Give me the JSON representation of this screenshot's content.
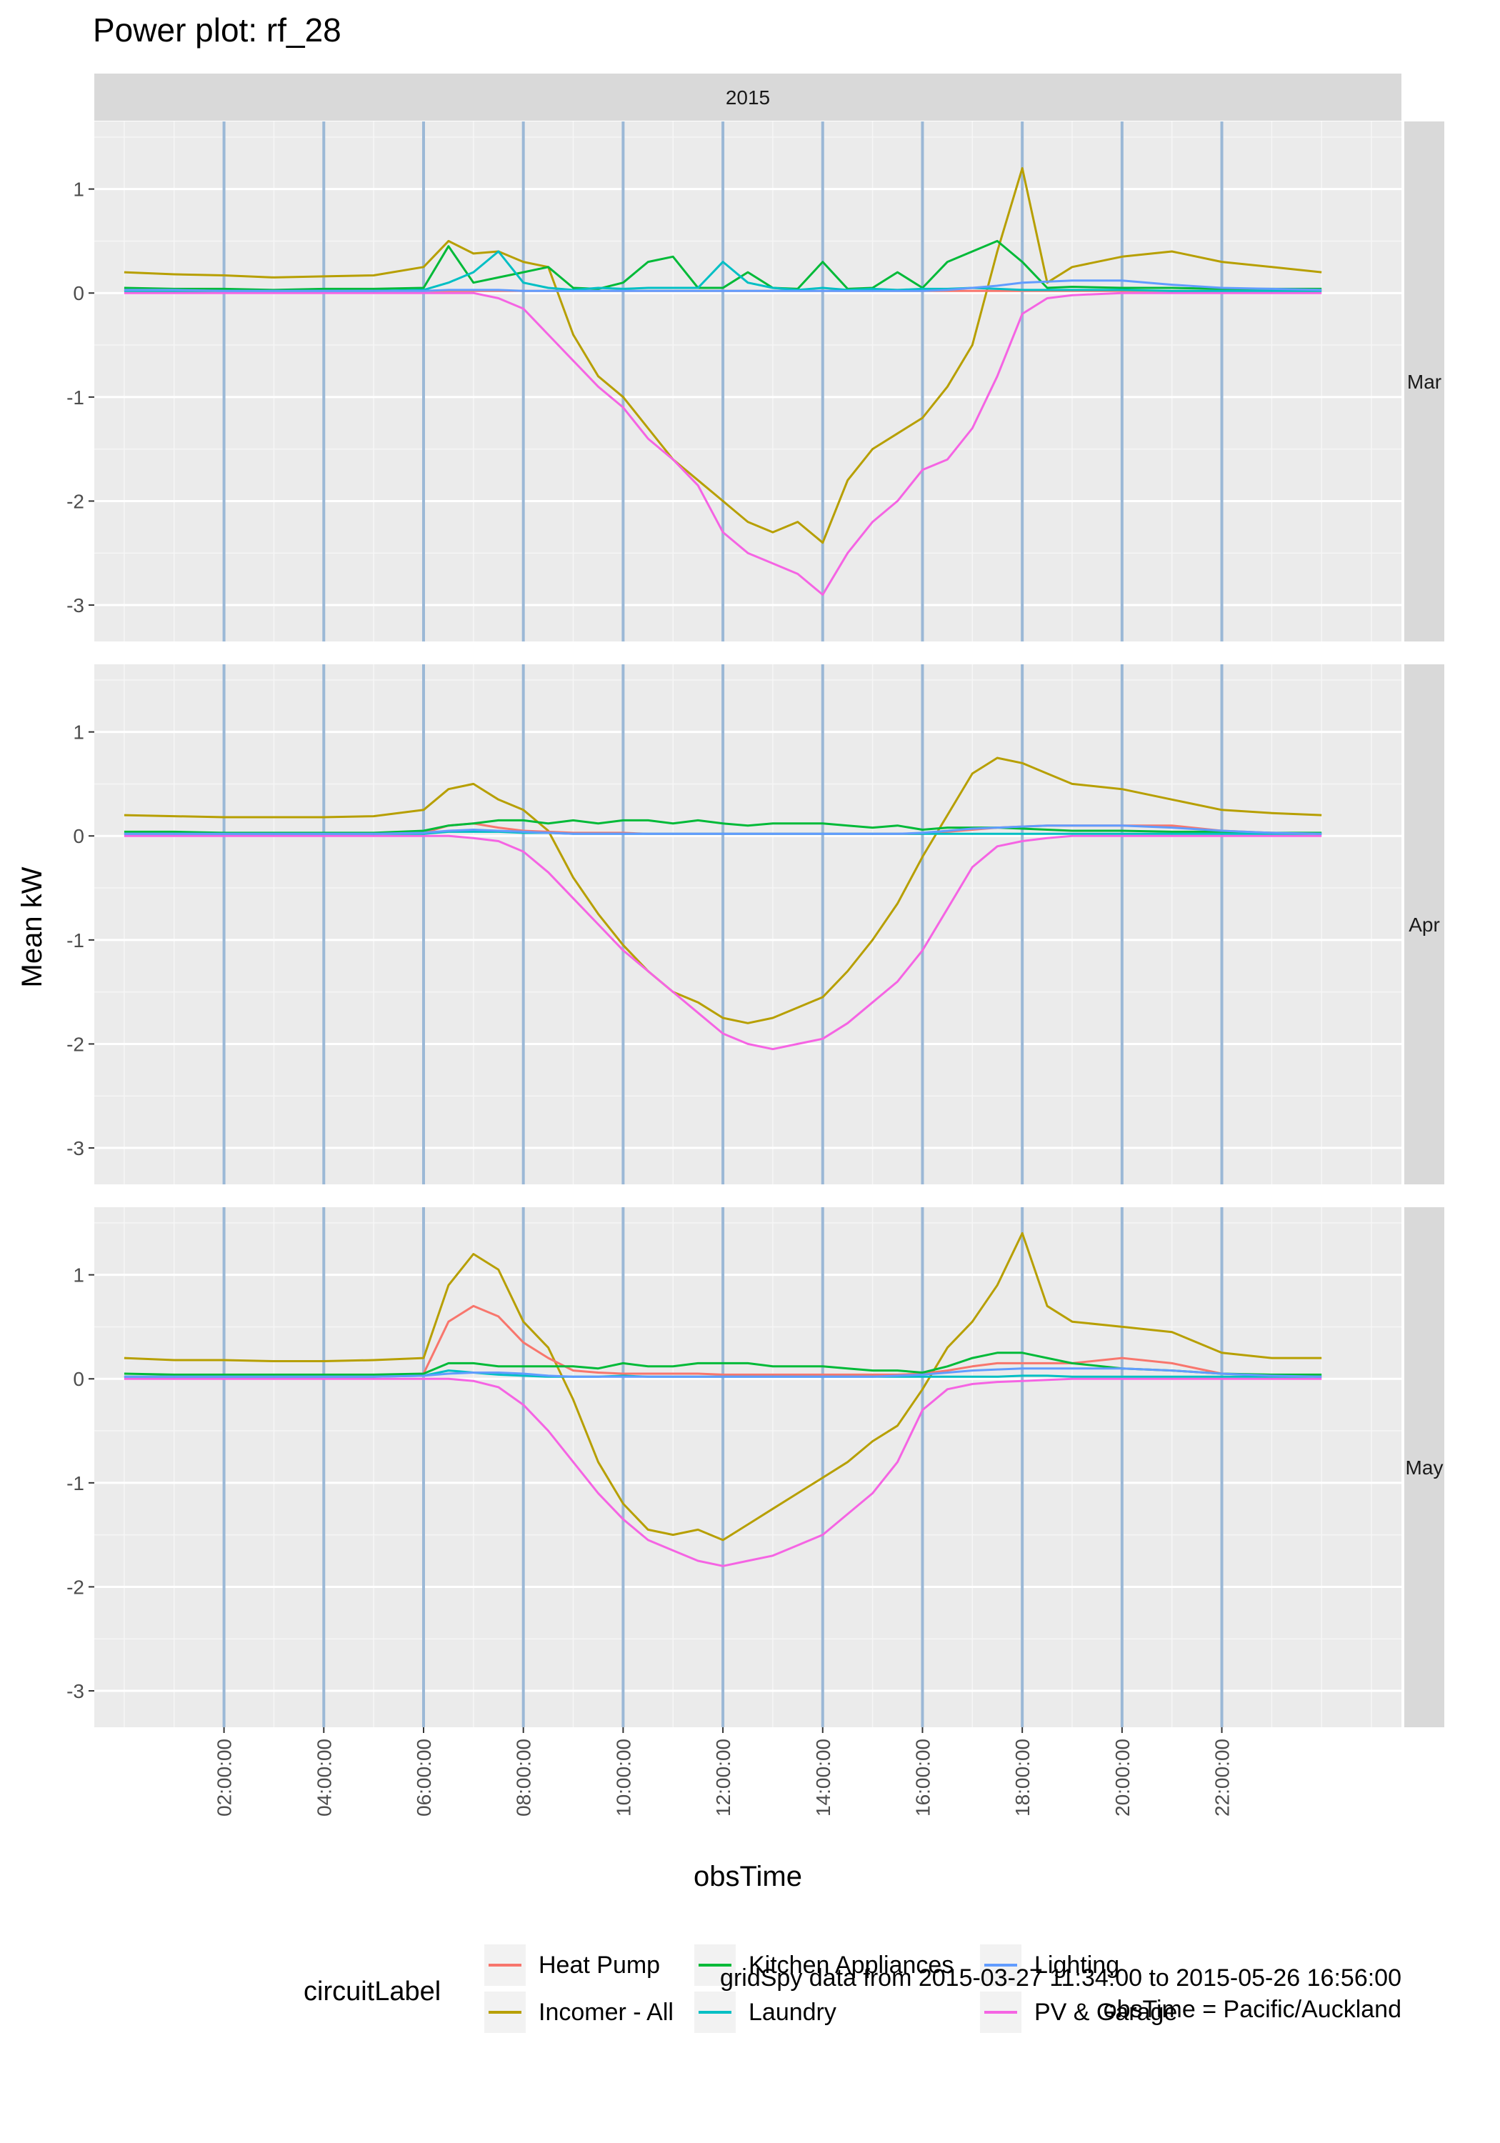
{
  "chart_data": {
    "type": "line",
    "title": "Power plot: rf_28",
    "xlabel": "obsTime",
    "ylabel": "Mean kW",
    "strip_top": "2015",
    "facets": [
      "Mar",
      "Apr",
      "May"
    ],
    "ylim": [
      -3.35,
      1.65
    ],
    "y_ticks": [
      1,
      0,
      -1,
      -2,
      -3
    ],
    "y_tick_labels": [
      "1",
      "0",
      "-1",
      "-2",
      "-3"
    ],
    "xlim": [
      -0.6,
      25.6
    ],
    "x_ticks": [
      2,
      4,
      6,
      8,
      10,
      12,
      14,
      16,
      18,
      20,
      22
    ],
    "x_tick_labels": [
      "02:00:00",
      "04:00:00",
      "06:00:00",
      "08:00:00",
      "10:00:00",
      "12:00:00",
      "14:00:00",
      "16:00:00",
      "18:00:00",
      "20:00:00",
      "22:00:00"
    ],
    "vlines": [
      2,
      4,
      6,
      8,
      10,
      12,
      14,
      16,
      18,
      20,
      22
    ],
    "grid": true,
    "legend_title": "circuitLabel",
    "legend_position": "bottom",
    "legend_order": [
      "Heat Pump",
      "Incomer - All",
      "Kitchen Appliances",
      "Laundry",
      "Lighting",
      "PV & Garage"
    ],
    "colors": {
      "Heat Pump": "#F8766D",
      "Incomer - All": "#B79F00",
      "Kitchen Appliances": "#00BA38",
      "Laundry": "#00BFC4",
      "Lighting": "#619CFF",
      "PV & Garage": "#F564E3",
      "vline": "#9BB8D6",
      "panel_bg": "#EBEBEB",
      "strip_bg": "#D9D9D9"
    },
    "caption_lines": [
      "gridSpy data from 2015-03-27 11:34:00 to 2015-05-26 16:56:00",
      "obsTime = Pacific/Auckland"
    ],
    "x": [
      0,
      1,
      2,
      3,
      4,
      5,
      6,
      6.5,
      7,
      7.5,
      8,
      8.5,
      9,
      9.5,
      10,
      10.5,
      11,
      11.5,
      12,
      12.5,
      13,
      13.5,
      14,
      14.5,
      15,
      15.5,
      16,
      16.5,
      17,
      17.5,
      18,
      18.5,
      19,
      20,
      21,
      22,
      23,
      24
    ],
    "panels": [
      {
        "facet": "Mar",
        "series": [
          {
            "name": "Heat Pump",
            "values": [
              0.02,
              0.02,
              0.02,
              0.02,
              0.02,
              0.02,
              0.02,
              0.02,
              0.02,
              0.02,
              0.02,
              0.02,
              0.02,
              0.02,
              0.02,
              0.02,
              0.02,
              0.02,
              0.02,
              0.02,
              0.02,
              0.02,
              0.02,
              0.02,
              0.02,
              0.02,
              0.02,
              0.02,
              0.02,
              0.02,
              0.02,
              0.02,
              0.02,
              0.02,
              0.02,
              0.02,
              0.02,
              0.02
            ]
          },
          {
            "name": "Incomer - All",
            "values": [
              0.2,
              0.18,
              0.17,
              0.15,
              0.16,
              0.17,
              0.25,
              0.5,
              0.38,
              0.4,
              0.3,
              0.25,
              -0.4,
              -0.8,
              -1.0,
              -1.3,
              -1.6,
              -1.8,
              -2.0,
              -2.2,
              -2.3,
              -2.2,
              -2.4,
              -1.8,
              -1.5,
              -1.35,
              -1.2,
              -0.9,
              -0.5,
              0.4,
              1.2,
              0.1,
              0.25,
              0.35,
              0.4,
              0.3,
              0.25,
              0.2
            ]
          },
          {
            "name": "Kitchen Appliances",
            "values": [
              0.05,
              0.04,
              0.04,
              0.03,
              0.04,
              0.04,
              0.05,
              0.45,
              0.1,
              0.15,
              0.2,
              0.25,
              0.05,
              0.04,
              0.1,
              0.3,
              0.35,
              0.05,
              0.05,
              0.2,
              0.05,
              0.04,
              0.3,
              0.04,
              0.05,
              0.2,
              0.05,
              0.3,
              0.4,
              0.5,
              0.3,
              0.05,
              0.06,
              0.05,
              0.05,
              0.04,
              0.04,
              0.04
            ]
          },
          {
            "name": "Laundry",
            "values": [
              0.02,
              0.02,
              0.02,
              0.02,
              0.02,
              0.02,
              0.03,
              0.1,
              0.2,
              0.4,
              0.1,
              0.05,
              0.03,
              0.05,
              0.04,
              0.05,
              0.05,
              0.05,
              0.3,
              0.1,
              0.05,
              0.03,
              0.05,
              0.03,
              0.04,
              0.03,
              0.04,
              0.04,
              0.05,
              0.04,
              0.03,
              0.03,
              0.03,
              0.03,
              0.02,
              0.02,
              0.02,
              0.02
            ]
          },
          {
            "name": "Lighting",
            "values": [
              0.03,
              0.03,
              0.02,
              0.02,
              0.02,
              0.02,
              0.02,
              0.03,
              0.03,
              0.03,
              0.02,
              0.02,
              0.02,
              0.02,
              0.02,
              0.02,
              0.02,
              0.02,
              0.02,
              0.02,
              0.02,
              0.02,
              0.02,
              0.02,
              0.02,
              0.02,
              0.02,
              0.03,
              0.05,
              0.07,
              0.1,
              0.11,
              0.12,
              0.12,
              0.08,
              0.05,
              0.04,
              0.03
            ]
          },
          {
            "name": "PV & Garage",
            "values": [
              0.0,
              0.0,
              0.0,
              0.0,
              0.0,
              0.0,
              0.0,
              0.0,
              0.0,
              -0.05,
              -0.15,
              -0.4,
              -0.65,
              -0.9,
              -1.1,
              -1.4,
              -1.6,
              -1.85,
              -2.3,
              -2.5,
              -2.6,
              -2.7,
              -2.9,
              -2.5,
              -2.2,
              -2.0,
              -1.7,
              -1.6,
              -1.3,
              -0.8,
              -0.2,
              -0.05,
              -0.02,
              0.0,
              0.0,
              0.0,
              0.0,
              0.0
            ]
          }
        ]
      },
      {
        "facet": "Apr",
        "series": [
          {
            "name": "Heat Pump",
            "values": [
              0.02,
              0.02,
              0.02,
              0.02,
              0.02,
              0.02,
              0.03,
              0.1,
              0.12,
              0.08,
              0.05,
              0.04,
              0.03,
              0.03,
              0.03,
              0.02,
              0.02,
              0.02,
              0.02,
              0.02,
              0.02,
              0.02,
              0.02,
              0.02,
              0.02,
              0.02,
              0.02,
              0.04,
              0.06,
              0.08,
              0.09,
              0.1,
              0.1,
              0.1,
              0.1,
              0.05,
              0.03,
              0.02
            ]
          },
          {
            "name": "Incomer - All",
            "values": [
              0.2,
              0.19,
              0.18,
              0.18,
              0.18,
              0.19,
              0.25,
              0.45,
              0.5,
              0.35,
              0.25,
              0.05,
              -0.4,
              -0.75,
              -1.05,
              -1.3,
              -1.5,
              -1.6,
              -1.75,
              -1.8,
              -1.75,
              -1.65,
              -1.55,
              -1.3,
              -1.0,
              -0.65,
              -0.2,
              0.2,
              0.6,
              0.75,
              0.7,
              0.6,
              0.5,
              0.45,
              0.35,
              0.25,
              0.22,
              0.2
            ]
          },
          {
            "name": "Kitchen Appliances",
            "values": [
              0.04,
              0.04,
              0.03,
              0.03,
              0.03,
              0.03,
              0.05,
              0.1,
              0.12,
              0.15,
              0.15,
              0.12,
              0.15,
              0.12,
              0.15,
              0.15,
              0.12,
              0.15,
              0.12,
              0.1,
              0.12,
              0.12,
              0.12,
              0.1,
              0.08,
              0.1,
              0.06,
              0.08,
              0.08,
              0.08,
              0.07,
              0.06,
              0.05,
              0.05,
              0.04,
              0.04,
              0.03,
              0.03
            ]
          },
          {
            "name": "Laundry",
            "values": [
              0.02,
              0.02,
              0.02,
              0.02,
              0.02,
              0.02,
              0.02,
              0.04,
              0.04,
              0.04,
              0.03,
              0.03,
              0.02,
              0.02,
              0.02,
              0.02,
              0.02,
              0.02,
              0.02,
              0.02,
              0.02,
              0.02,
              0.02,
              0.02,
              0.02,
              0.02,
              0.02,
              0.02,
              0.02,
              0.02,
              0.02,
              0.02,
              0.02,
              0.02,
              0.02,
              0.02,
              0.02,
              0.02
            ]
          },
          {
            "name": "Lighting",
            "values": [
              0.02,
              0.02,
              0.02,
              0.02,
              0.02,
              0.02,
              0.03,
              0.05,
              0.06,
              0.05,
              0.04,
              0.03,
              0.02,
              0.02,
              0.02,
              0.02,
              0.02,
              0.02,
              0.02,
              0.02,
              0.02,
              0.02,
              0.02,
              0.02,
              0.02,
              0.02,
              0.03,
              0.05,
              0.07,
              0.08,
              0.09,
              0.1,
              0.1,
              0.1,
              0.08,
              0.05,
              0.03,
              0.02
            ]
          },
          {
            "name": "PV & Garage",
            "values": [
              0.0,
              0.0,
              0.0,
              0.0,
              0.0,
              0.0,
              0.0,
              0.0,
              -0.02,
              -0.05,
              -0.15,
              -0.35,
              -0.6,
              -0.85,
              -1.1,
              -1.3,
              -1.5,
              -1.7,
              -1.9,
              -2.0,
              -2.05,
              -2.0,
              -1.95,
              -1.8,
              -1.6,
              -1.4,
              -1.1,
              -0.7,
              -0.3,
              -0.1,
              -0.05,
              -0.02,
              0.0,
              0.0,
              0.0,
              0.0,
              0.0,
              0.0
            ]
          }
        ]
      },
      {
        "facet": "May",
        "series": [
          {
            "name": "Heat Pump",
            "values": [
              0.02,
              0.02,
              0.02,
              0.02,
              0.02,
              0.02,
              0.05,
              0.55,
              0.7,
              0.6,
              0.35,
              0.2,
              0.08,
              0.06,
              0.05,
              0.05,
              0.05,
              0.05,
              0.04,
              0.04,
              0.04,
              0.04,
              0.04,
              0.04,
              0.04,
              0.04,
              0.05,
              0.08,
              0.12,
              0.15,
              0.15,
              0.15,
              0.15,
              0.2,
              0.15,
              0.05,
              0.03,
              0.02
            ]
          },
          {
            "name": "Incomer - All",
            "values": [
              0.2,
              0.18,
              0.18,
              0.17,
              0.17,
              0.18,
              0.2,
              0.9,
              1.2,
              1.05,
              0.55,
              0.3,
              -0.2,
              -0.8,
              -1.2,
              -1.45,
              -1.5,
              -1.45,
              -1.55,
              -1.4,
              -1.25,
              -1.1,
              -0.95,
              -0.8,
              -0.6,
              -0.45,
              -0.1,
              0.3,
              0.55,
              0.9,
              1.4,
              0.7,
              0.55,
              0.5,
              0.45,
              0.25,
              0.2,
              0.2
            ]
          },
          {
            "name": "Kitchen Appliances",
            "values": [
              0.05,
              0.04,
              0.04,
              0.04,
              0.04,
              0.04,
              0.05,
              0.15,
              0.15,
              0.12,
              0.12,
              0.12,
              0.12,
              0.1,
              0.15,
              0.12,
              0.12,
              0.15,
              0.15,
              0.15,
              0.12,
              0.12,
              0.12,
              0.1,
              0.08,
              0.08,
              0.06,
              0.12,
              0.2,
              0.25,
              0.25,
              0.2,
              0.15,
              0.1,
              0.08,
              0.05,
              0.04,
              0.04
            ]
          },
          {
            "name": "Laundry",
            "values": [
              0.02,
              0.02,
              0.02,
              0.02,
              0.02,
              0.02,
              0.03,
              0.08,
              0.06,
              0.04,
              0.03,
              0.02,
              0.02,
              0.02,
              0.03,
              0.02,
              0.02,
              0.02,
              0.02,
              0.02,
              0.02,
              0.02,
              0.02,
              0.02,
              0.02,
              0.02,
              0.02,
              0.02,
              0.02,
              0.02,
              0.03,
              0.03,
              0.02,
              0.02,
              0.02,
              0.02,
              0.02,
              0.02
            ]
          },
          {
            "name": "Lighting",
            "values": [
              0.02,
              0.02,
              0.02,
              0.02,
              0.02,
              0.02,
              0.03,
              0.05,
              0.06,
              0.06,
              0.05,
              0.03,
              0.02,
              0.02,
              0.02,
              0.02,
              0.02,
              0.02,
              0.02,
              0.02,
              0.02,
              0.02,
              0.02,
              0.02,
              0.02,
              0.03,
              0.04,
              0.06,
              0.08,
              0.09,
              0.1,
              0.1,
              0.1,
              0.1,
              0.08,
              0.05,
              0.03,
              0.02
            ]
          },
          {
            "name": "PV & Garage",
            "values": [
              0.0,
              0.0,
              0.0,
              0.0,
              0.0,
              0.0,
              0.0,
              0.0,
              -0.02,
              -0.08,
              -0.25,
              -0.5,
              -0.8,
              -1.1,
              -1.35,
              -1.55,
              -1.65,
              -1.75,
              -1.8,
              -1.75,
              -1.7,
              -1.6,
              -1.5,
              -1.3,
              -1.1,
              -0.8,
              -0.3,
              -0.1,
              -0.05,
              -0.03,
              -0.02,
              -0.01,
              0.0,
              0.0,
              0.0,
              0.0,
              0.0,
              0.0
            ]
          }
        ]
      }
    ]
  }
}
